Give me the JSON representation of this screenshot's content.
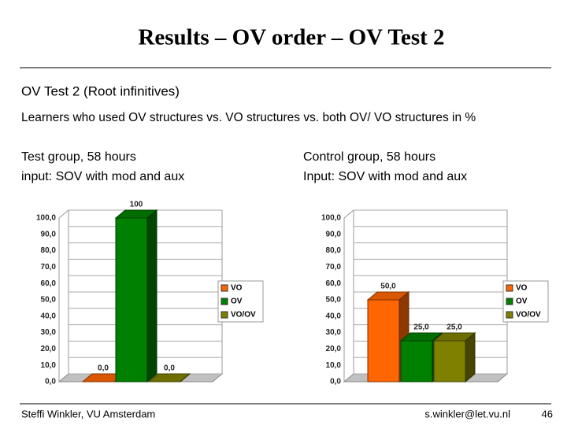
{
  "header": {
    "title": "Results – OV order – OV Test 2"
  },
  "heading": "OV Test 2 (Root infinitives)",
  "description": "Learners who used OV structures vs. VO structures vs. both OV/ VO structures in %",
  "footer": {
    "author": "Steffi Winkler, VU Amsterdam",
    "email": "s.winkler@let.vu.nl",
    "page": "46"
  },
  "chart_data": [
    {
      "type": "bar",
      "title": "Test group, 58 hours",
      "subtitle": "input: SOV with mod and aux",
      "series": [
        {
          "name": "VO",
          "color": "#ff6600",
          "values": [
            0
          ],
          "value_labels": [
            "0,0"
          ]
        },
        {
          "name": "OV",
          "color": "#008000",
          "values": [
            100
          ],
          "value_labels": [
            "100"
          ]
        },
        {
          "name": "VO/OV",
          "color": "#808000",
          "values": [
            0
          ],
          "value_labels": [
            "0,0"
          ]
        }
      ],
      "ylim": [
        0,
        100
      ],
      "yticks": [
        {
          "value": 0,
          "label": "0,0"
        },
        {
          "value": 10,
          "label": "10,0"
        },
        {
          "value": 20,
          "label": "20,0"
        },
        {
          "value": 30,
          "label": "30,0"
        },
        {
          "value": 40,
          "label": "40,0"
        },
        {
          "value": 50,
          "label": "50,0"
        },
        {
          "value": 60,
          "label": "60,0"
        },
        {
          "value": 70,
          "label": "70,0"
        },
        {
          "value": 80,
          "label": "80,0"
        },
        {
          "value": 90,
          "label": "90,0"
        },
        {
          "value": 100,
          "label": "100,0"
        }
      ],
      "grid": true,
      "legend": "right"
    },
    {
      "type": "bar",
      "title": "Control group, 58 hours",
      "subtitle": "Input: SOV with mod and aux",
      "series": [
        {
          "name": "VO",
          "color": "#ff6600",
          "values": [
            50
          ],
          "value_labels": [
            "50,0"
          ]
        },
        {
          "name": "OV",
          "color": "#008000",
          "values": [
            25
          ],
          "value_labels": [
            "25,0"
          ]
        },
        {
          "name": "VO/OV",
          "color": "#808000",
          "values": [
            25
          ],
          "value_labels": [
            "25,0"
          ]
        }
      ],
      "ylim": [
        0,
        100
      ],
      "yticks": [
        {
          "value": 0,
          "label": "0,0"
        },
        {
          "value": 10,
          "label": "10,0"
        },
        {
          "value": 20,
          "label": "20,0"
        },
        {
          "value": 30,
          "label": "30,0"
        },
        {
          "value": 40,
          "label": "40,0"
        },
        {
          "value": 50,
          "label": "50,0"
        },
        {
          "value": 60,
          "label": "60,0"
        },
        {
          "value": 70,
          "label": "70,0"
        },
        {
          "value": 80,
          "label": "80,0"
        },
        {
          "value": 90,
          "label": "90,0"
        },
        {
          "value": 100,
          "label": "100,0"
        }
      ],
      "grid": true,
      "legend": "right"
    }
  ]
}
